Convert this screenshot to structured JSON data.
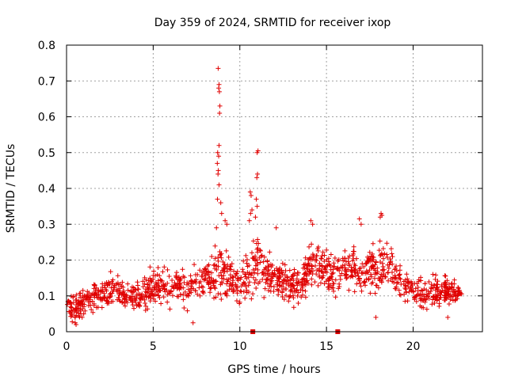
{
  "chart_data": {
    "type": "scatter",
    "title": "Day 359 of 2024, SRMTID for receiver ixop",
    "xlabel": "GPS time / hours",
    "ylabel": "SRMTID / TECUs",
    "xlim": [
      0,
      24
    ],
    "ylim": [
      0,
      0.8
    ],
    "xticks": [
      0,
      5,
      10,
      15,
      20
    ],
    "yticks": [
      0,
      0.1,
      0.2,
      0.3,
      0.4,
      0.5,
      0.6,
      0.7,
      0.8
    ],
    "xtick_labels": [
      "0",
      "5",
      "10",
      "15",
      "20"
    ],
    "ytick_labels": [
      "0",
      "0.1",
      "0.2",
      "0.3",
      "0.4",
      "0.5",
      "0.6",
      "0.7",
      "0.8"
    ],
    "grid": true,
    "marker": "+",
    "series_color": "#e00000",
    "sample_estimated_points": true,
    "baseline_markers_x": [
      10.75,
      15.65
    ],
    "envelope_hours": [
      0,
      0.5,
      1,
      1.5,
      2,
      2.5,
      3,
      3.5,
      4,
      4.5,
      5,
      5.5,
      6,
      6.5,
      7,
      7.5,
      8,
      8.5,
      9,
      9.5,
      10,
      10.5,
      11,
      11.5,
      12,
      12.5,
      13,
      13.5,
      14,
      14.5,
      15,
      15.5,
      16,
      16.5,
      17,
      17.5,
      18,
      18.5,
      19,
      19.5,
      20,
      20.5,
      21,
      21.5,
      22,
      22.5,
      22.8
    ],
    "envelope_typical": [
      0.07,
      0.07,
      0.08,
      0.1,
      0.1,
      0.12,
      0.11,
      0.1,
      0.1,
      0.11,
      0.12,
      0.13,
      0.12,
      0.13,
      0.12,
      0.13,
      0.15,
      0.16,
      0.17,
      0.15,
      0.14,
      0.15,
      0.18,
      0.17,
      0.15,
      0.14,
      0.13,
      0.13,
      0.18,
      0.19,
      0.17,
      0.16,
      0.17,
      0.17,
      0.16,
      0.17,
      0.18,
      0.19,
      0.16,
      0.13,
      0.12,
      0.11,
      0.11,
      0.11,
      0.12,
      0.11,
      0.1
    ],
    "envelope_spread": [
      0.03,
      0.04,
      0.03,
      0.04,
      0.04,
      0.05,
      0.04,
      0.04,
      0.04,
      0.05,
      0.05,
      0.05,
      0.05,
      0.05,
      0.06,
      0.06,
      0.06,
      0.07,
      0.08,
      0.07,
      0.06,
      0.08,
      0.07,
      0.06,
      0.05,
      0.05,
      0.05,
      0.05,
      0.06,
      0.06,
      0.06,
      0.05,
      0.05,
      0.06,
      0.05,
      0.06,
      0.07,
      0.06,
      0.05,
      0.04,
      0.04,
      0.04,
      0.04,
      0.04,
      0.04,
      0.03,
      0.03
    ],
    "spike_points": [
      {
        "x": 8.75,
        "y": 0.735
      },
      {
        "x": 8.8,
        "y": 0.69
      },
      {
        "x": 8.78,
        "y": 0.68
      },
      {
        "x": 8.82,
        "y": 0.67
      },
      {
        "x": 8.85,
        "y": 0.63
      },
      {
        "x": 8.83,
        "y": 0.61
      },
      {
        "x": 8.8,
        "y": 0.52
      },
      {
        "x": 8.72,
        "y": 0.5
      },
      {
        "x": 8.78,
        "y": 0.49
      },
      {
        "x": 8.7,
        "y": 0.47
      },
      {
        "x": 8.76,
        "y": 0.45
      },
      {
        "x": 8.74,
        "y": 0.44
      },
      {
        "x": 8.8,
        "y": 0.41
      },
      {
        "x": 8.71,
        "y": 0.37
      },
      {
        "x": 8.9,
        "y": 0.36
      },
      {
        "x": 8.95,
        "y": 0.33
      },
      {
        "x": 9.15,
        "y": 0.31
      },
      {
        "x": 9.25,
        "y": 0.3
      },
      {
        "x": 11.05,
        "y": 0.505
      },
      {
        "x": 11.0,
        "y": 0.5
      },
      {
        "x": 11.02,
        "y": 0.44
      },
      {
        "x": 10.98,
        "y": 0.43
      },
      {
        "x": 10.6,
        "y": 0.39
      },
      {
        "x": 10.65,
        "y": 0.38
      },
      {
        "x": 10.95,
        "y": 0.37
      },
      {
        "x": 11.0,
        "y": 0.35
      },
      {
        "x": 10.7,
        "y": 0.34
      },
      {
        "x": 10.62,
        "y": 0.33
      },
      {
        "x": 10.9,
        "y": 0.32
      },
      {
        "x": 10.55,
        "y": 0.31
      },
      {
        "x": 18.15,
        "y": 0.33
      },
      {
        "x": 18.2,
        "y": 0.325
      },
      {
        "x": 18.1,
        "y": 0.32
      },
      {
        "x": 14.1,
        "y": 0.31
      },
      {
        "x": 16.9,
        "y": 0.315
      },
      {
        "x": 17.0,
        "y": 0.3
      },
      {
        "x": 14.2,
        "y": 0.3
      },
      {
        "x": 8.65,
        "y": 0.29
      },
      {
        "x": 12.1,
        "y": 0.29
      },
      {
        "x": 0.55,
        "y": 0.02
      },
      {
        "x": 0.5,
        "y": 0.025
      },
      {
        "x": 7.3,
        "y": 0.025
      },
      {
        "x": 0.9,
        "y": 0.04
      },
      {
        "x": 17.85,
        "y": 0.04
      },
      {
        "x": 22.0,
        "y": 0.04
      }
    ]
  }
}
